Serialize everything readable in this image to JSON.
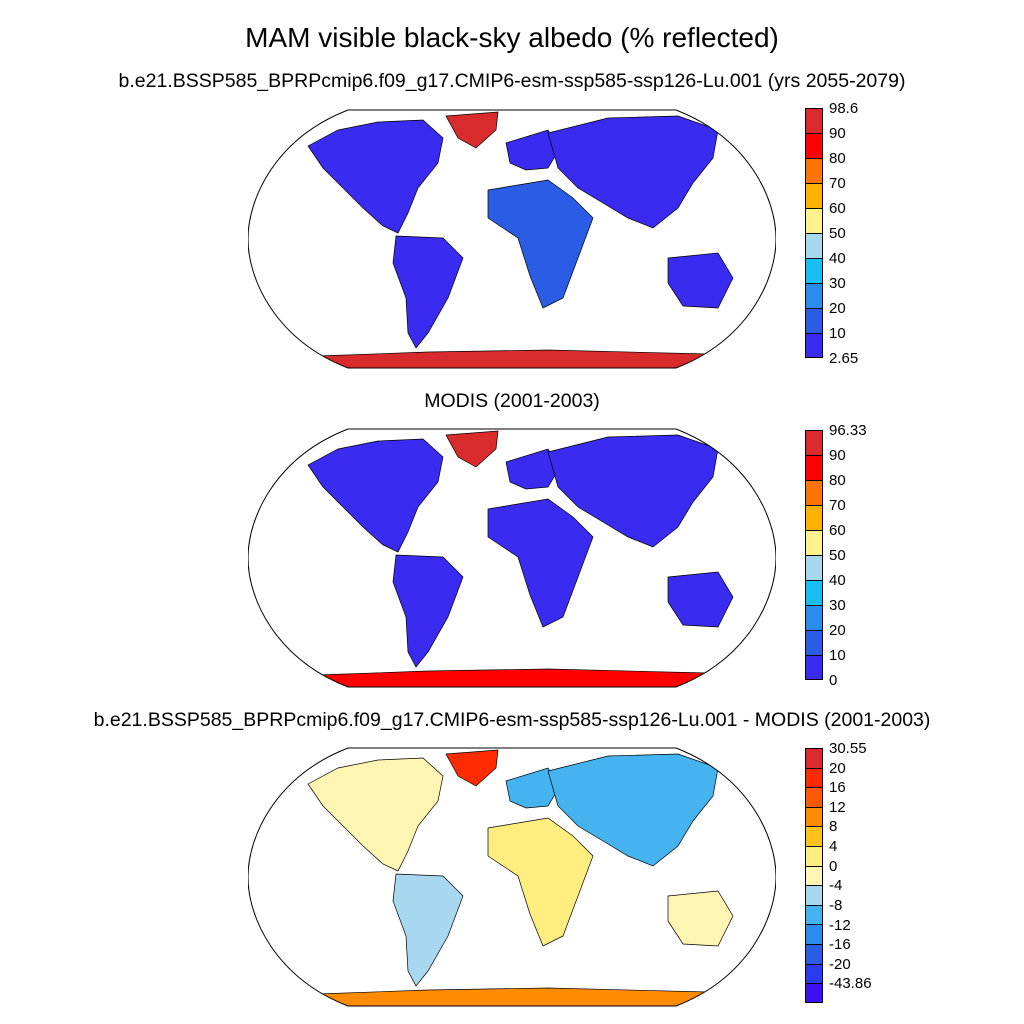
{
  "title": "MAM visible black-sky albedo (% reflected)",
  "panels": [
    {
      "title": "b.e21.BSSP585_BPRPcmip6.f09_g17.CMIP6-esm-ssp585-ssp126-Lu.001 (yrs 2055-2079)",
      "colorbar": {
        "labels": [
          "98.6",
          "90",
          "80",
          "70",
          "60",
          "50",
          "40",
          "30",
          "20",
          "10",
          "2.65"
        ],
        "colors": [
          "#d92b2b",
          "#ff0000",
          "#ff7300",
          "#ffb300",
          "#fff28c",
          "#a8d8f0",
          "#19bff2",
          "#2b8cf0",
          "#2b5ce6",
          "#3a2bf0"
        ]
      }
    },
    {
      "title": "MODIS (2001-2003)",
      "colorbar": {
        "labels": [
          "96.33",
          "90",
          "80",
          "70",
          "60",
          "50",
          "40",
          "30",
          "20",
          "10",
          "0"
        ],
        "colors": [
          "#d92b2b",
          "#ff0000",
          "#ff7300",
          "#ffb300",
          "#fff28c",
          "#a8d8f0",
          "#19bff2",
          "#2b8cf0",
          "#2b5ce6",
          "#3a2bf0"
        ]
      }
    },
    {
      "title": "b.e21.BSSP585_BPRPcmip6.f09_g17.CMIP6-esm-ssp585-ssp126-Lu.001 - MODIS (2001-2003)",
      "colorbar": {
        "labels": [
          "30.55",
          "20",
          "16",
          "12",
          "8",
          "4",
          "0",
          "-4",
          "-8",
          "-12",
          "-16",
          "-20",
          "-43.86"
        ],
        "colors": [
          "#d92b2b",
          "#ff2b00",
          "#ff5a00",
          "#ff8c00",
          "#ffc21a",
          "#ffed80",
          "#fff5b3",
          "#a8d8f0",
          "#45b3f0",
          "#2b8cf0",
          "#2b5ce6",
          "#2b3cf0",
          "#3a10f0"
        ]
      }
    }
  ]
}
